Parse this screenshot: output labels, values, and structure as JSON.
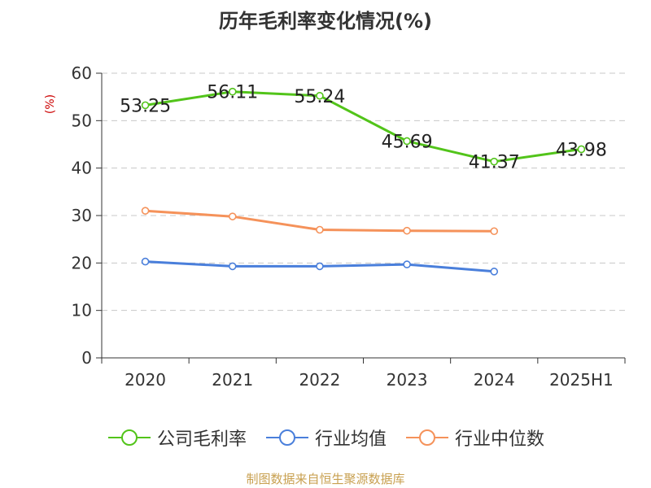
{
  "title": "历年毛利率变化情况(%)",
  "source": "制图数据来自恒生聚源数据库",
  "chart_data": {
    "type": "line",
    "ylabel": "(%)",
    "ylim": [
      0,
      60
    ],
    "yticks": [
      0,
      10,
      20,
      30,
      40,
      50,
      60
    ],
    "categories": [
      "2020",
      "2021",
      "2022",
      "2023",
      "2024",
      "2025H1"
    ],
    "grid": true,
    "legend_position": "bottom",
    "series": [
      {
        "name": "公司毛利率",
        "color": "#52c41a",
        "values": [
          53.25,
          56.11,
          55.24,
          45.69,
          41.37,
          43.98
        ],
        "labels": [
          "53.25",
          "56.11",
          "55.24",
          "45.69",
          "41.37",
          "43.98"
        ],
        "show_labels": true
      },
      {
        "name": "行业均值",
        "color": "#4a7fdb",
        "values": [
          20.3,
          19.3,
          19.3,
          19.7,
          18.2,
          null
        ],
        "show_labels": false
      },
      {
        "name": "行业中位数",
        "color": "#f5925a",
        "values": [
          31.0,
          29.8,
          27.0,
          26.8,
          26.7,
          null
        ],
        "show_labels": false
      }
    ]
  }
}
